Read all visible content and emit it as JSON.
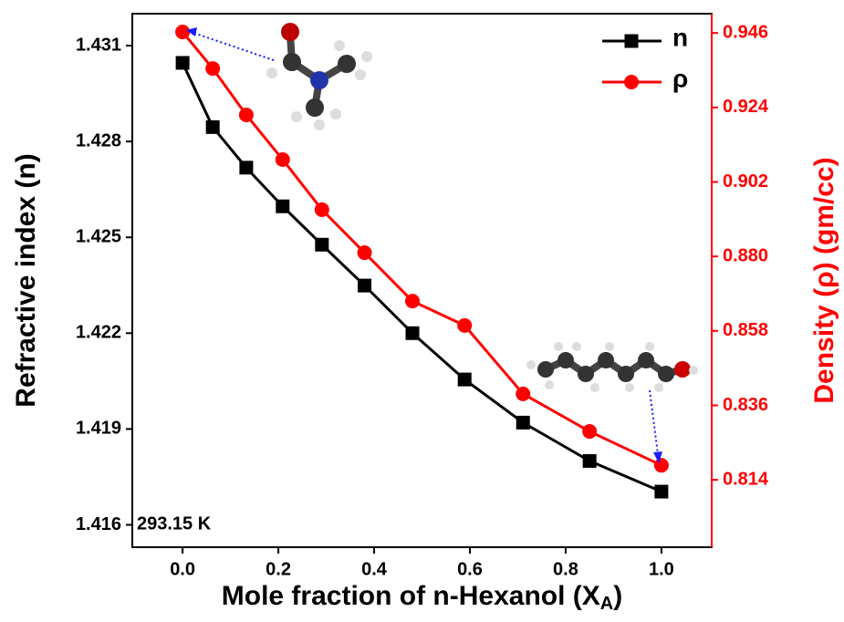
{
  "chart_data": {
    "type": "line",
    "xlabel": [
      "Mole fraction of n-Hexanol (X",
      "A",
      ")"
    ],
    "ylabel": "Refractive index (n)",
    "y2label": "Density (ρ) (gm/cc)",
    "annotation": "293.15 K",
    "x": [
      0,
      0.063,
      0.133,
      0.209,
      0.291,
      0.38,
      0.48,
      0.589,
      0.711,
      0.85,
      1.0
    ],
    "series": [
      {
        "name": "n",
        "color": "#000000",
        "marker": "square",
        "values": [
          1.43046,
          1.42845,
          1.42718,
          1.42597,
          1.42477,
          1.42349,
          1.422,
          1.42055,
          1.4192,
          1.418,
          1.41704
        ]
      },
      {
        "name": "ρ",
        "color": "#ff0000",
        "marker": "circle",
        "axis": "y2",
        "values": [
          0.9463,
          0.9355,
          0.9218,
          0.9086,
          0.8938,
          0.8811,
          0.8668,
          0.8596,
          0.8394,
          0.8283,
          0.8183
        ]
      }
    ],
    "xlim": [
      -0.105,
      1.105
    ],
    "xticks": [
      {
        "value": 0,
        "label": "0.0"
      },
      {
        "value": 0.2,
        "label": "0.2"
      },
      {
        "value": 0.4,
        "label": "0.4"
      },
      {
        "value": 0.6,
        "label": "0.6"
      },
      {
        "value": 0.8,
        "label": "0.8"
      },
      {
        "value": 1.0,
        "label": "1.0"
      }
    ],
    "ylim": [
      1.4153,
      1.432
    ],
    "yticks": [
      1.416,
      1.419,
      1.422,
      1.425,
      1.428,
      1.431
    ],
    "y2lim": [
      0.7941,
      0.9517
    ],
    "y2ticks": [
      0.814,
      0.836,
      0.858,
      {
        "value": 0.88,
        "label": "0.880"
      },
      0.902,
      0.924,
      0.946
    ],
    "y2color": "#ff0000",
    "legend": "upper right"
  }
}
